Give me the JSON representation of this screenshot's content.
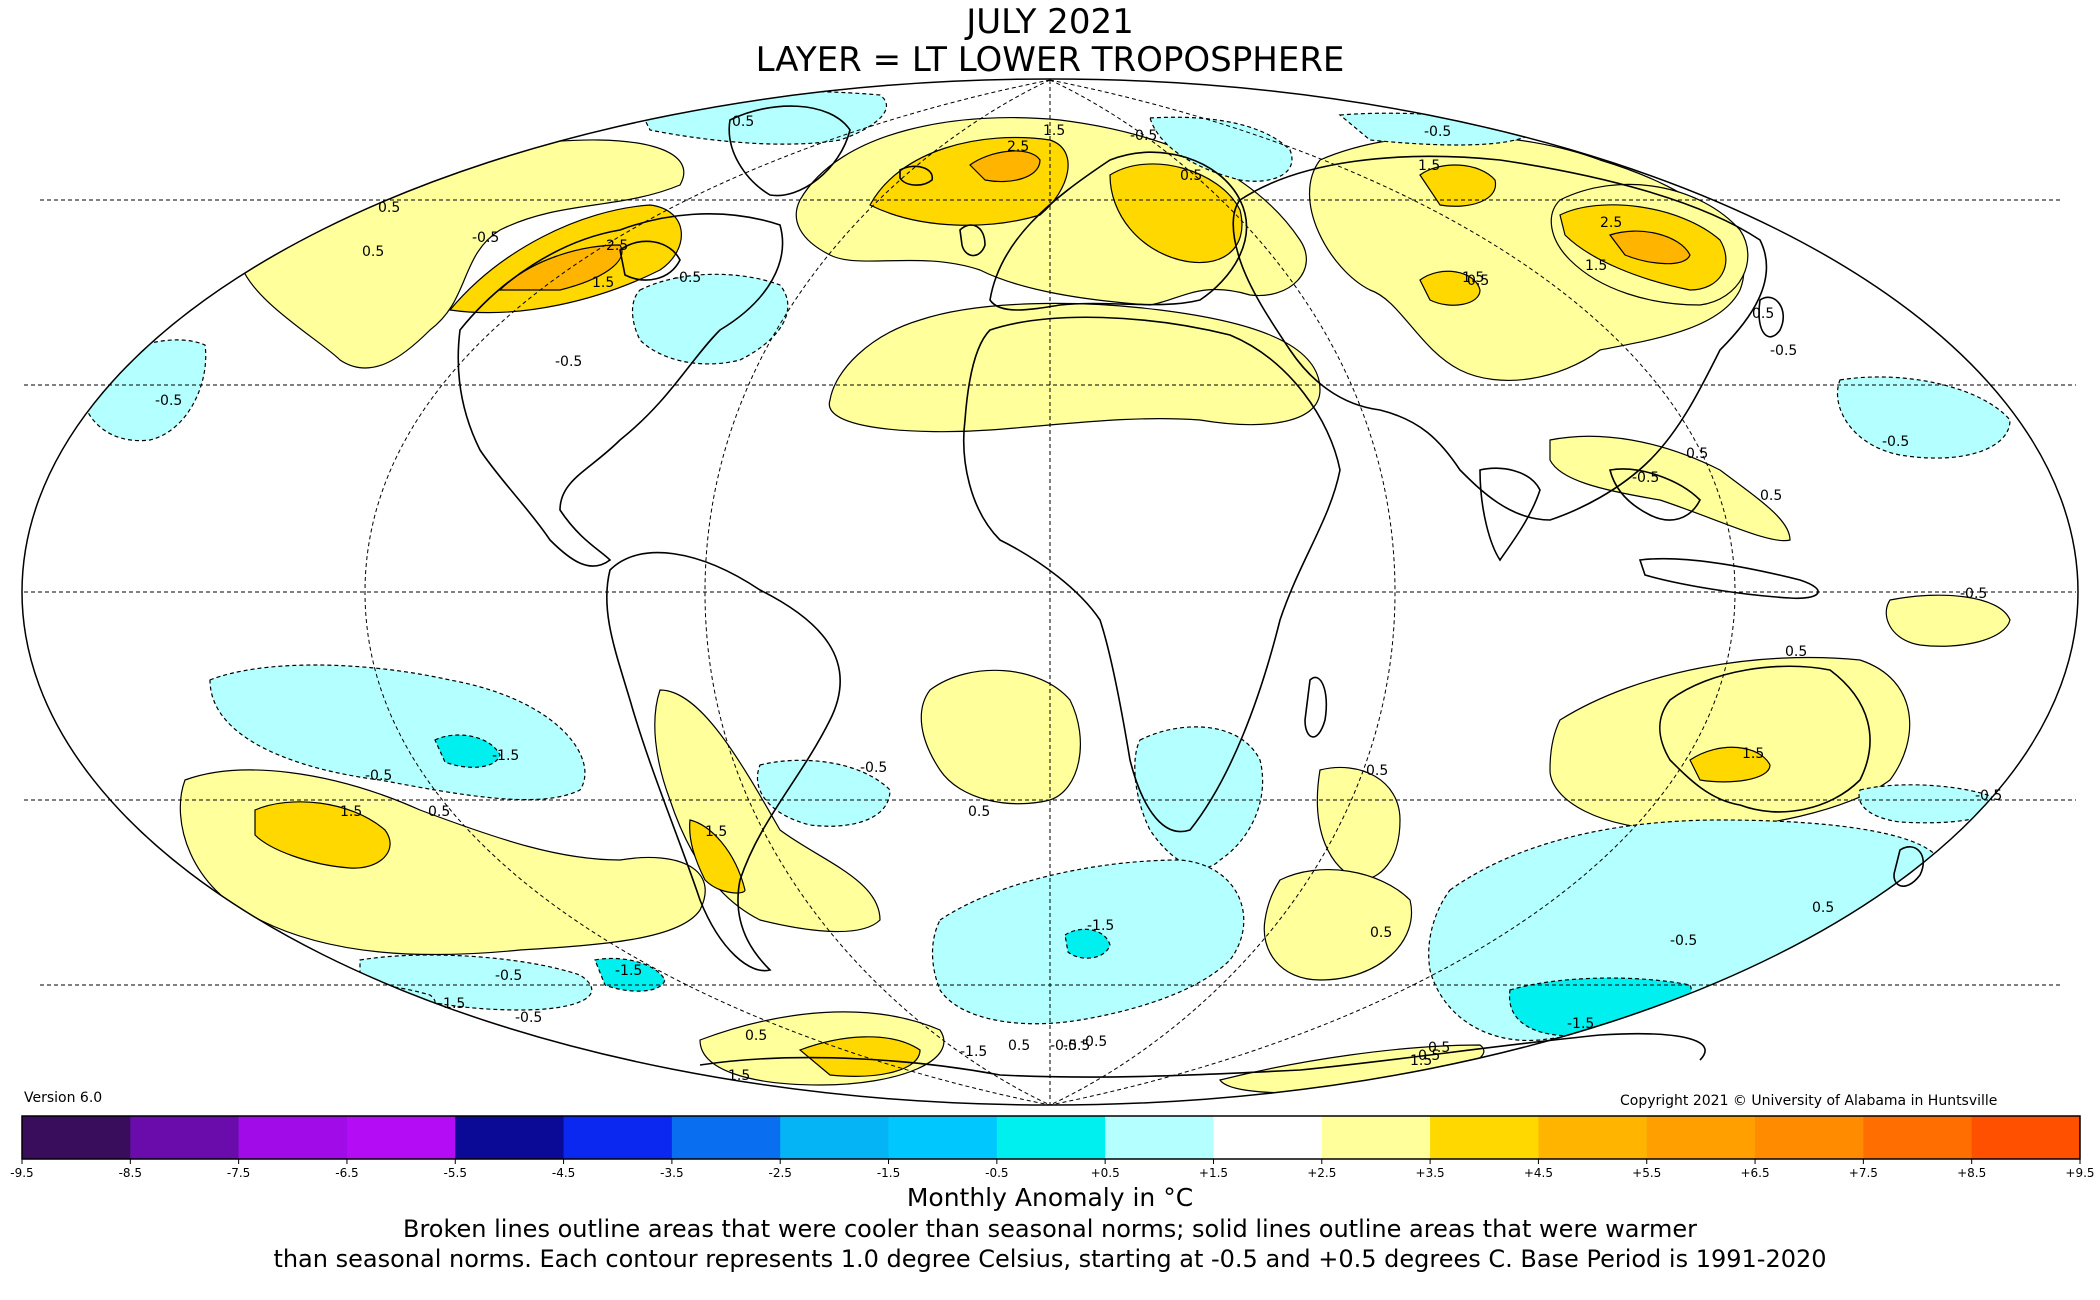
{
  "title": {
    "line1": "JULY 2021",
    "line2": "LAYER = LT LOWER TROPOSPHERE"
  },
  "version": "Version 6.0",
  "copyright": "Copyright 2021 © University of Alabama in Huntsville",
  "legend": {
    "title": "Monthly Anomaly in °C",
    "tick_labels": [
      "-9.5",
      "-8.5",
      "-7.5",
      "-6.5",
      "-5.5",
      "-4.5",
      "-3.5",
      "-2.5",
      "-1.5",
      "-0.5",
      "+0.5",
      "+1.5",
      "+2.5",
      "+3.5",
      "+4.5",
      "+5.5",
      "+6.5",
      "+7.5",
      "+8.5",
      "+9.5"
    ],
    "colors": [
      "#3a0d5c",
      "#6a0cab",
      "#a00be8",
      "#b40df5",
      "#0a0a96",
      "#0a28f0",
      "#0a6ef0",
      "#05b4f5",
      "#00c8ff",
      "#00f0f0",
      "#b4ffff",
      "#ffffff",
      "#ffff9b",
      "#ffd800",
      "#ffb400",
      "#ffa000",
      "#ff8c00",
      "#ff6e00",
      "#ff5000",
      "#e60000",
      "#b40000"
    ]
  },
  "caption": {
    "line1": "Broken lines outline areas that were cooler than seasonal norms; solid lines outline areas that were warmer",
    "line2": "than seasonal norms. Each contour represents 1.0 degree Celsius, starting at -0.5 and +0.5 degrees C. Base Period is 1991-2020"
  },
  "map": {
    "projection": "Mollweide",
    "contour_labels": [
      "0.5",
      "0.5",
      "-0.5",
      "2.5",
      "1.5",
      "-0.5",
      "2.5",
      "1.5",
      "-0.5",
      "0.5",
      "0.5",
      "1.5",
      "0.5",
      "-0.5",
      "-0.5",
      "1.5",
      "2.5",
      "1.5",
      "0.5",
      "-0.5",
      "-0.5",
      "-0.5",
      "-0.5",
      "0.5",
      "0.5",
      "0.5",
      "-0.5",
      "-1.5",
      "-0.5",
      "1.5",
      "0.5",
      "1.5",
      "-0.5",
      "0.5",
      "0.5",
      "-1.5",
      "-0.5",
      "-1.5",
      "-0.5",
      "-0.5",
      "1.5",
      "-1.5",
      "0.5",
      "-1.5",
      "0.5",
      "0.5",
      "1.5",
      "-0.5",
      "0.5",
      "-0.5",
      "-0.5",
      "0.5",
      "-1.5",
      "1.5",
      "0.5",
      "-0.5"
    ]
  }
}
